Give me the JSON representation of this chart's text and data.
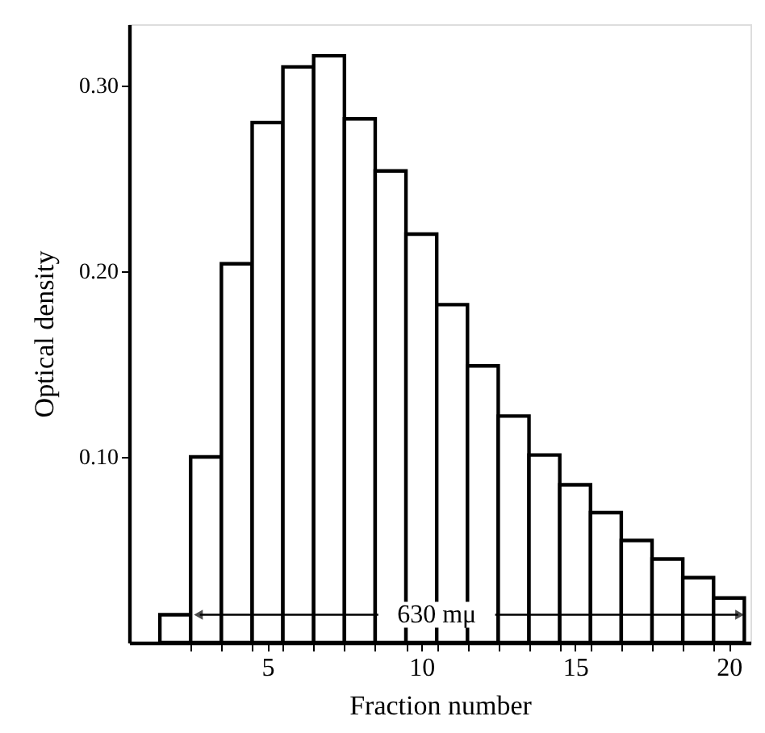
{
  "chart_data": {
    "type": "histogram",
    "xlabel": "Fraction number",
    "ylabel": "Optical density",
    "bins": [
      1.5,
      2.5,
      3.5,
      4.5,
      5.5,
      6.5,
      7.5,
      8.5,
      9.5,
      10.5,
      11.5,
      12.5,
      13.5,
      14.5,
      15.5,
      16.5,
      17.5,
      18.5,
      19.5,
      20.5
    ],
    "values": [
      0.015,
      0.1,
      0.204,
      0.28,
      0.31,
      0.316,
      0.282,
      0.254,
      0.22,
      0.182,
      0.149,
      0.122,
      0.101,
      0.085,
      0.07,
      0.055,
      0.045,
      0.035,
      0.024
    ],
    "color": "#000000",
    "xlim": [
      0.5,
      20.7
    ],
    "xticks": [
      5,
      10,
      15,
      20,
      {
        "value": 2.5,
        "label": null
      },
      {
        "value": 3.5,
        "label": null
      },
      {
        "value": 4.5,
        "label": null
      },
      {
        "value": 5.5,
        "label": null
      },
      {
        "value": 6.5,
        "label": null
      },
      {
        "value": 7.5,
        "label": null
      },
      {
        "value": 8.5,
        "label": null
      },
      {
        "value": 9.5,
        "label": null
      },
      {
        "value": 10.5,
        "label": null
      },
      {
        "value": 11.5,
        "label": null
      },
      {
        "value": 12.5,
        "label": null
      },
      {
        "value": 13.5,
        "label": null
      },
      {
        "value": 14.5,
        "label": null
      },
      {
        "value": 15.5,
        "label": null
      },
      {
        "value": 16.5,
        "label": null
      },
      {
        "value": 17.5,
        "label": null
      },
      {
        "value": 18.5,
        "label": null
      },
      {
        "value": 19.5,
        "label": null
      }
    ],
    "ylim": [
      0,
      0.333
    ],
    "yticks": [
      {
        "value": 0.1,
        "label": "0.10"
      },
      {
        "value": 0.2,
        "label": "0.20"
      },
      {
        "value": 0.3,
        "label": "0.30"
      }
    ],
    "grid": false,
    "annotations": [
      {
        "text": "630 mμ",
        "x": 20.5,
        "y": 0.015
      }
    ]
  }
}
